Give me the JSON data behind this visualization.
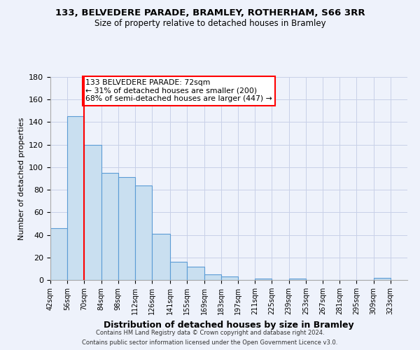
{
  "title": "133, BELVEDERE PARADE, BRAMLEY, ROTHERHAM, S66 3RR",
  "subtitle": "Size of property relative to detached houses in Bramley",
  "xlabel": "Distribution of detached houses by size in Bramley",
  "ylabel": "Number of detached properties",
  "bar_left_edges": [
    42,
    56,
    70,
    84,
    98,
    112,
    126,
    141,
    155,
    169,
    183,
    197,
    211,
    225,
    239,
    253,
    267,
    281,
    295,
    309
  ],
  "bar_widths": [
    14,
    14,
    14,
    14,
    14,
    14,
    15,
    14,
    14,
    14,
    14,
    14,
    14,
    14,
    14,
    14,
    14,
    14,
    14,
    14
  ],
  "bar_heights": [
    46,
    145,
    120,
    95,
    91,
    84,
    41,
    16,
    12,
    5,
    3,
    0,
    1,
    0,
    1,
    0,
    0,
    0,
    0,
    2
  ],
  "xtick_labels": [
    "42sqm",
    "56sqm",
    "70sqm",
    "84sqm",
    "98sqm",
    "112sqm",
    "126sqm",
    "141sqm",
    "155sqm",
    "169sqm",
    "183sqm",
    "197sqm",
    "211sqm",
    "225sqm",
    "239sqm",
    "253sqm",
    "267sqm",
    "281sqm",
    "295sqm",
    "309sqm",
    "323sqm"
  ],
  "xtick_positions": [
    42,
    56,
    70,
    84,
    98,
    112,
    126,
    141,
    155,
    169,
    183,
    197,
    211,
    225,
    239,
    253,
    267,
    281,
    295,
    309,
    323
  ],
  "ylim": [
    0,
    180
  ],
  "yticks": [
    0,
    20,
    40,
    60,
    80,
    100,
    120,
    140,
    160,
    180
  ],
  "bar_color": "#c9dff0",
  "bar_edge_color": "#5b9bd5",
  "property_line_x": 70,
  "annotation_box_text": "133 BELVEDERE PARADE: 72sqm\n← 31% of detached houses are smaller (200)\n68% of semi-detached houses are larger (447) →",
  "background_color": "#eef2fb",
  "grid_color": "#c8d0e8",
  "footer_line1": "Contains HM Land Registry data © Crown copyright and database right 2024.",
  "footer_line2": "Contains public sector information licensed under the Open Government Licence v3.0."
}
